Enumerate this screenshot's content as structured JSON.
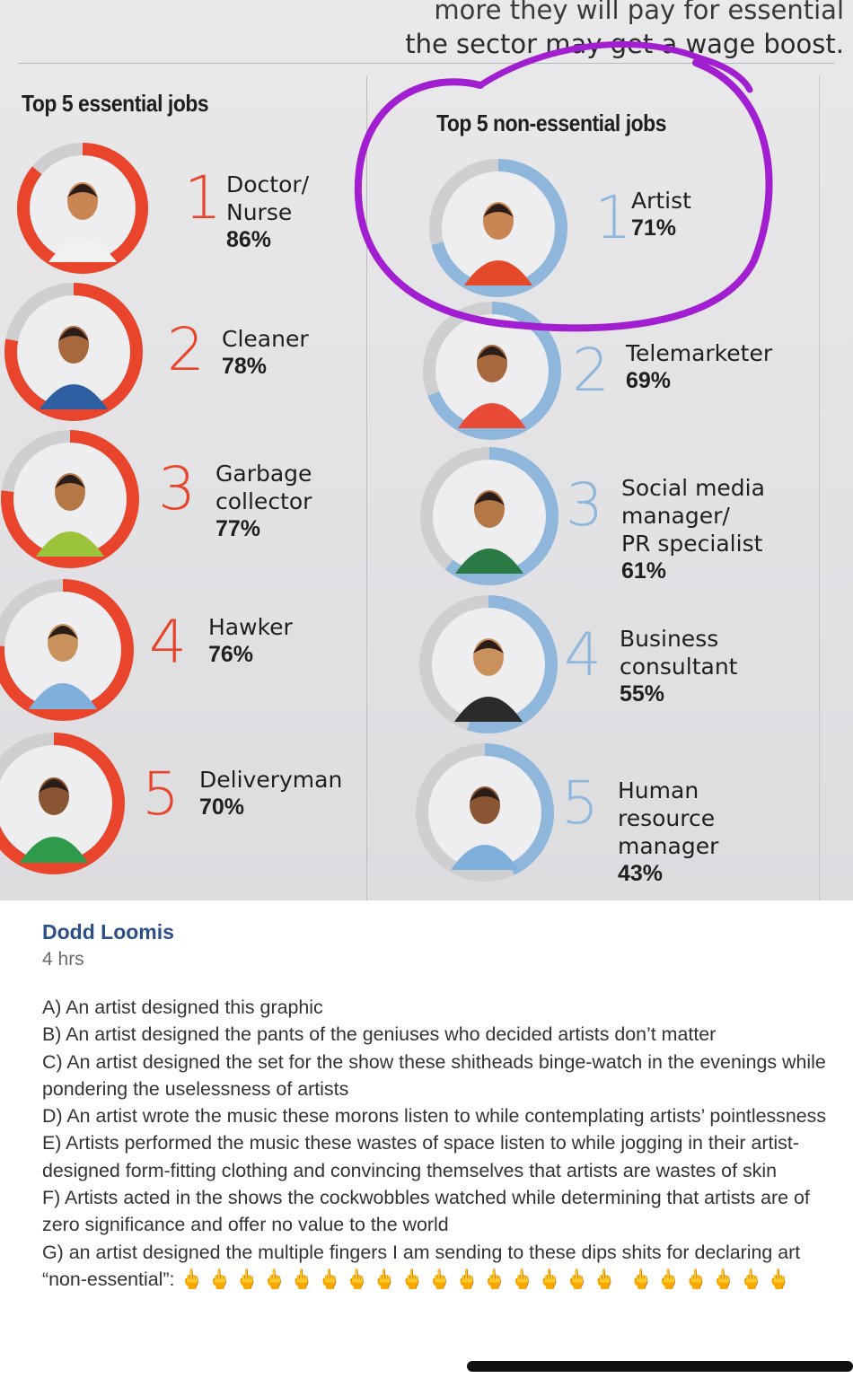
{
  "headline": {
    "line1": "more they will pay for essential",
    "line2": "the sector may get a wage boost."
  },
  "essential": {
    "title": "Top 5 essential jobs",
    "jobs": [
      {
        "rank": "1",
        "name": "Doctor/\nNurse",
        "pct": "86%"
      },
      {
        "rank": "2",
        "name": "Cleaner",
        "pct": "78%"
      },
      {
        "rank": "3",
        "name": "Garbage\ncollector",
        "pct": "77%"
      },
      {
        "rank": "4",
        "name": "Hawker",
        "pct": "76%"
      },
      {
        "rank": "5",
        "name": "Deliveryman",
        "pct": "70%"
      }
    ]
  },
  "nonessential": {
    "title": "Top 5 non-essential jobs",
    "jobs": [
      {
        "rank": "1",
        "name": "Artist",
        "pct": "71%"
      },
      {
        "rank": "2",
        "name": "Telemarketer",
        "pct": "69%"
      },
      {
        "rank": "3",
        "name": "Social media\nmanager/\nPR specialist",
        "pct": "61%"
      },
      {
        "rank": "4",
        "name": "Business\nconsultant",
        "pct": "55%"
      },
      {
        "rank": "5",
        "name": "Human\nresource\nmanager",
        "pct": "43%"
      }
    ]
  },
  "chart_data": {
    "type": "table",
    "title": "Top 5 essential jobs / Top 5 non-essential jobs",
    "series": [
      {
        "name": "Top 5 essential jobs",
        "categories": [
          "Doctor/Nurse",
          "Cleaner",
          "Garbage collector",
          "Hawker",
          "Deliveryman"
        ],
        "values": [
          86,
          78,
          77,
          76,
          70
        ]
      },
      {
        "name": "Top 5 non-essential jobs",
        "categories": [
          "Artist",
          "Telemarketer",
          "Social media manager/PR specialist",
          "Business consultant",
          "Human resource manager"
        ],
        "values": [
          71,
          69,
          61,
          55,
          43
        ]
      }
    ]
  },
  "colors": {
    "essential": "#e8452c",
    "nonessential": "#8fb7dc",
    "annotation": "#a11fd0",
    "track": "#cfcfd2"
  },
  "post": {
    "author": "Dodd Loomis",
    "time": "4 hrs",
    "lines": [
      "A) An artist designed this graphic",
      "B) An artist designed the pants of the geniuses who decided artists don’t matter",
      "C) An artist designed the set for the show these shitheads binge-watch in the evenings while pondering the uselessness of artists",
      "D) An artist wrote the music these morons listen to while contemplating artists’ pointlessness",
      "E) Artists performed the music these wastes of space listen to while jogging in their artist-designed form-fitting clothing and convincing themselves that artists are wastes of skin",
      "F) Artists acted in the shows the cockwobbles watched while determining that artists are of zero significance and offer no value to the world",
      "G) an artist designed the multiple fingers I am sending to these dips shits for declaring art “non-essential”:"
    ],
    "emoji": "🖕🖕🖕🖕🖕🖕🖕🖕🖕🖕🖕🖕🖕🖕🖕🖕 🖕🖕🖕🖕🖕🖕"
  }
}
